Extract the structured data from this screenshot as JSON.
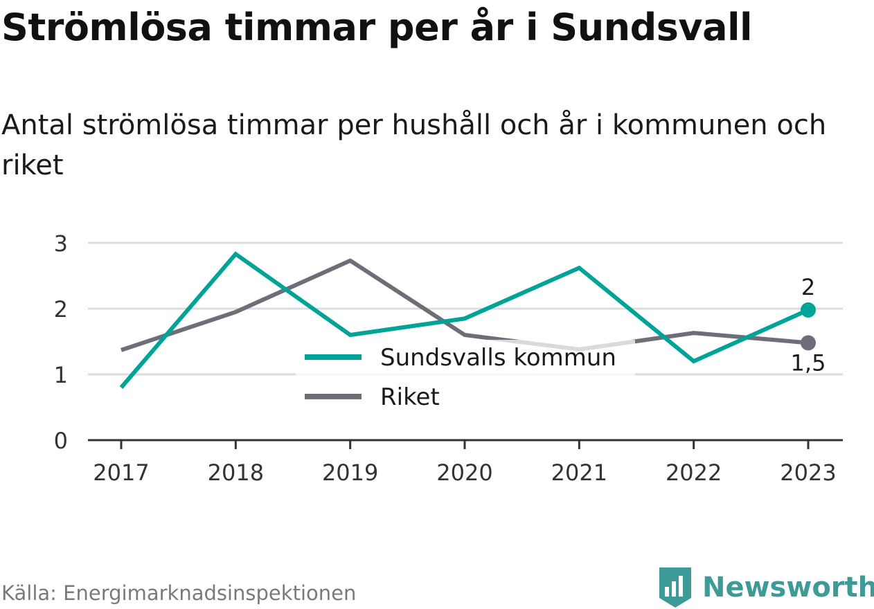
{
  "title": "Strömlösa timmar per år i Sundsvall",
  "subtitle": "Antal strömlösa timmar per hushåll och år i kommunen och riket",
  "source": "Källa: Energimarknadsinspektionen",
  "brand": {
    "name": "Newsworthy",
    "icon": "newsworthy-logo-icon",
    "color": "#3e9a96"
  },
  "chart_data": {
    "type": "line",
    "x": [
      "2017",
      "2018",
      "2019",
      "2020",
      "2021",
      "2022",
      "2023"
    ],
    "series": [
      {
        "name": "Sundsvalls kommun",
        "color": "#00a398",
        "values": [
          0.8,
          2.83,
          1.6,
          1.85,
          2.62,
          1.2,
          1.98
        ]
      },
      {
        "name": "Riket",
        "color": "#6e6e78",
        "values": [
          1.37,
          1.95,
          2.73,
          1.6,
          1.38,
          1.63,
          1.48
        ]
      }
    ],
    "ylim": [
      0,
      3
    ],
    "yticks": [
      "0",
      "1",
      "2",
      "3"
    ],
    "end_labels": [
      "2",
      "1,5"
    ],
    "legend": "center",
    "grid": true
  }
}
